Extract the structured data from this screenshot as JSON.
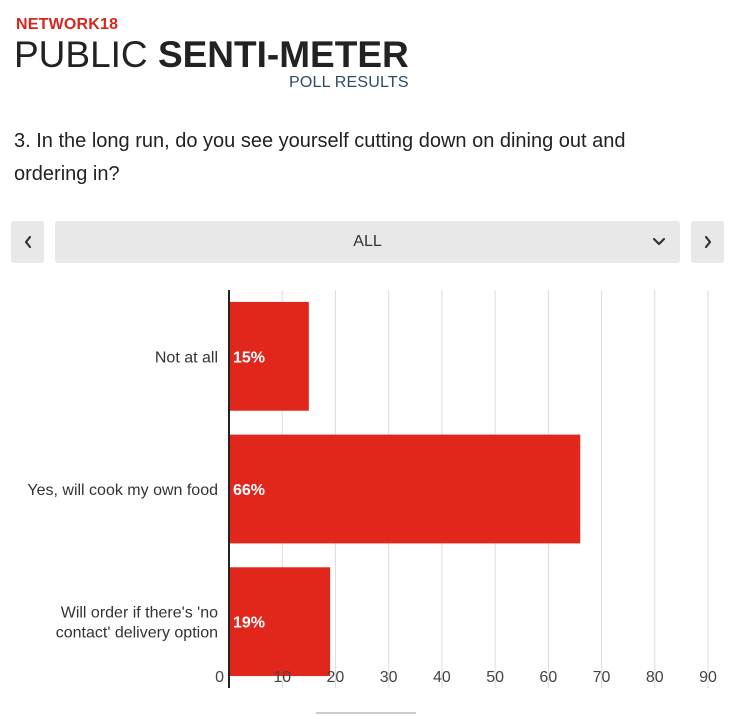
{
  "header": {
    "brand": "NETWORK18",
    "title_regular": "PUBLIC ",
    "title_bold": "SENTI-METER",
    "subtitle": "POLL RESULTS"
  },
  "question": "3. In the long run, do you see yourself cutting down on dining out and ordering in?",
  "filter": {
    "selected": "ALL",
    "prev_icon": "chevron-left-icon",
    "next_icon": "chevron-right-icon",
    "dropdown_icon": "chevron-down-icon"
  },
  "colors": {
    "bar": "#e1271c",
    "axis": "#222222",
    "grid": "#dddddd",
    "brand": "#d7261e"
  },
  "chart_data": {
    "type": "bar",
    "orientation": "horizontal",
    "title": "",
    "xlabel": "",
    "ylabel": "",
    "categories": [
      [
        "Not at all"
      ],
      [
        "Yes, will cook my own food"
      ],
      [
        "Will order if there's 'no",
        "contact' delivery option"
      ]
    ],
    "values": [
      15,
      66,
      19
    ],
    "data_labels": [
      "15%",
      "66%",
      "19%"
    ],
    "xlim": [
      0,
      90
    ],
    "xticks": [
      0,
      10,
      20,
      30,
      40,
      50,
      60,
      70,
      80,
      90
    ],
    "grid": true,
    "legend": "none"
  }
}
